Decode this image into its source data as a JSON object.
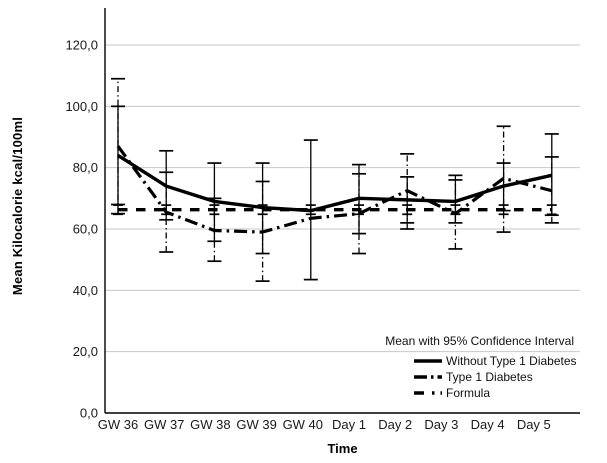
{
  "chart_data": {
    "type": "line",
    "title": "",
    "xlabel": "Time",
    "ylabel": "Mean Kilocalorie kcal/100ml",
    "categories": [
      "GW 36",
      "GW 37",
      "GW 38",
      "GW 39",
      "GW 40",
      "Day 1",
      "Day 2",
      "Day 3",
      "Day 4",
      "Day 5"
    ],
    "y_ticks": [
      0,
      20,
      40,
      60,
      80,
      100,
      120
    ],
    "y_tick_labels": [
      "0,0",
      "20,0",
      "40,0",
      "60,0",
      "80,0",
      "100,0",
      "120,0"
    ],
    "ylim": [
      0,
      130
    ],
    "grid": "horizontal",
    "error_bars": "95% confidence interval",
    "legend_title": "Mean with 95% Confidence Interval",
    "legend_position": "inside-bottom-right",
    "line_color": "#000000",
    "gridline_color": "#c8c8c8",
    "series": [
      {
        "name": "Without Type 1 Diabetes",
        "style": "solid",
        "values": [
          84,
          74,
          69,
          67,
          66,
          70,
          69.5,
          69,
          74,
          77.5
        ],
        "ci_low": [
          68,
          63,
          56,
          52,
          43.5,
          58.5,
          62,
          62,
          66,
          64.5
        ],
        "ci_high": [
          100,
          85.5,
          81.5,
          81.5,
          89,
          81,
          77,
          76,
          81.5,
          91
        ]
      },
      {
        "name": "Type 1 Diabetes",
        "style": "dash-dot",
        "values": [
          87,
          65.5,
          59.5,
          59,
          63.5,
          65,
          72.5,
          65,
          76.5,
          72.5
        ],
        "ci_low": [
          65,
          52.5,
          49.5,
          43,
          null,
          52,
          60,
          53.5,
          59,
          62
        ],
        "ci_high": [
          109,
          78.5,
          70,
          75.5,
          null,
          78,
          84.5,
          77.5,
          93.5,
          83.5
        ]
      },
      {
        "name": "Formula",
        "style": "dashed",
        "values": [
          66.3,
          66.3,
          66.3,
          66.3,
          66.3,
          66.3,
          66.3,
          66.3,
          66.3,
          66.3
        ],
        "ci_low": [
          64.8,
          64.8,
          64.8,
          64.8,
          64.8,
          64.8,
          64.8,
          64.8,
          64.8,
          64.8
        ],
        "ci_high": [
          67.8,
          67.8,
          67.8,
          67.8,
          67.8,
          67.8,
          67.8,
          67.8,
          67.8,
          67.8
        ]
      }
    ]
  }
}
